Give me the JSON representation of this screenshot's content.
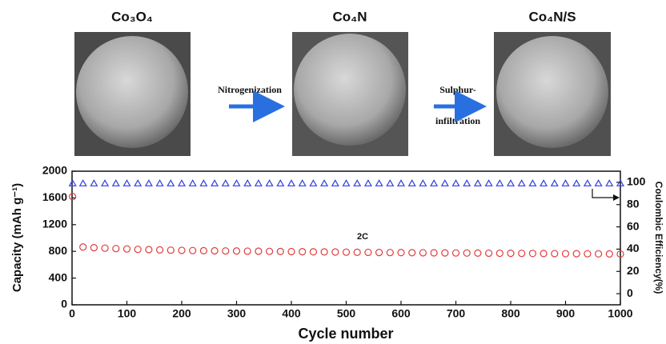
{
  "schematic": {
    "stages": [
      "Co₃O₄",
      "Co₄N",
      "Co₄N/S"
    ],
    "steps": [
      [
        "Nitrogenization"
      ],
      [
        "Sulphur-",
        "infiltration"
      ]
    ]
  },
  "chart_data": {
    "type": "scatter",
    "xlabel": "Cycle number",
    "ylabel": "Capacity (mAh g⁻¹)",
    "y2label": "Coulombic Efficiency(%)",
    "annotation": "2C",
    "xlim": [
      0,
      1000
    ],
    "xticks": [
      0,
      100,
      200,
      300,
      400,
      500,
      600,
      700,
      800,
      900,
      1000
    ],
    "ylim": [
      0,
      2000
    ],
    "yticks": [
      0,
      400,
      800,
      1200,
      1600,
      2000
    ],
    "y2lim": [
      -10,
      110
    ],
    "y2ticks": [
      0,
      20,
      40,
      60,
      80,
      100
    ],
    "x": [
      1,
      20,
      40,
      60,
      80,
      100,
      120,
      140,
      160,
      180,
      200,
      220,
      240,
      260,
      280,
      300,
      320,
      340,
      360,
      380,
      400,
      420,
      440,
      460,
      480,
      500,
      520,
      540,
      560,
      580,
      600,
      620,
      640,
      660,
      680,
      700,
      720,
      740,
      760,
      780,
      800,
      820,
      840,
      860,
      880,
      900,
      920,
      940,
      960,
      980,
      1000
    ],
    "series": [
      {
        "color": "#e03c3c",
        "marker": "circle",
        "values": [
          1620,
          865,
          855,
          848,
          842,
          836,
          830,
          826,
          822,
          818,
          815,
          812,
          810,
          808,
          806,
          805,
          803,
          802,
          800,
          798,
          797,
          795,
          793,
          792,
          790,
          788,
          786,
          785,
          783,
          782,
          781,
          780,
          779,
          778,
          777,
          776,
          775,
          774,
          773,
          772,
          771,
          770,
          769,
          768,
          767,
          766,
          765,
          764,
          763,
          762,
          760
        ]
      },
      {
        "color": "#2f3fe0",
        "marker": "triangle",
        "axis": "y2",
        "values": [
          99,
          99,
          99,
          99,
          99,
          99,
          99,
          99,
          99,
          99,
          99,
          99,
          99,
          99,
          99,
          99,
          99,
          99,
          99,
          99,
          99,
          99,
          99,
          99,
          99,
          99,
          99,
          99,
          99,
          99,
          99,
          99,
          99,
          99,
          99,
          99,
          99,
          99,
          99,
          99,
          99,
          99,
          99,
          99,
          99,
          99,
          99,
          99,
          99,
          99,
          99
        ]
      }
    ]
  }
}
